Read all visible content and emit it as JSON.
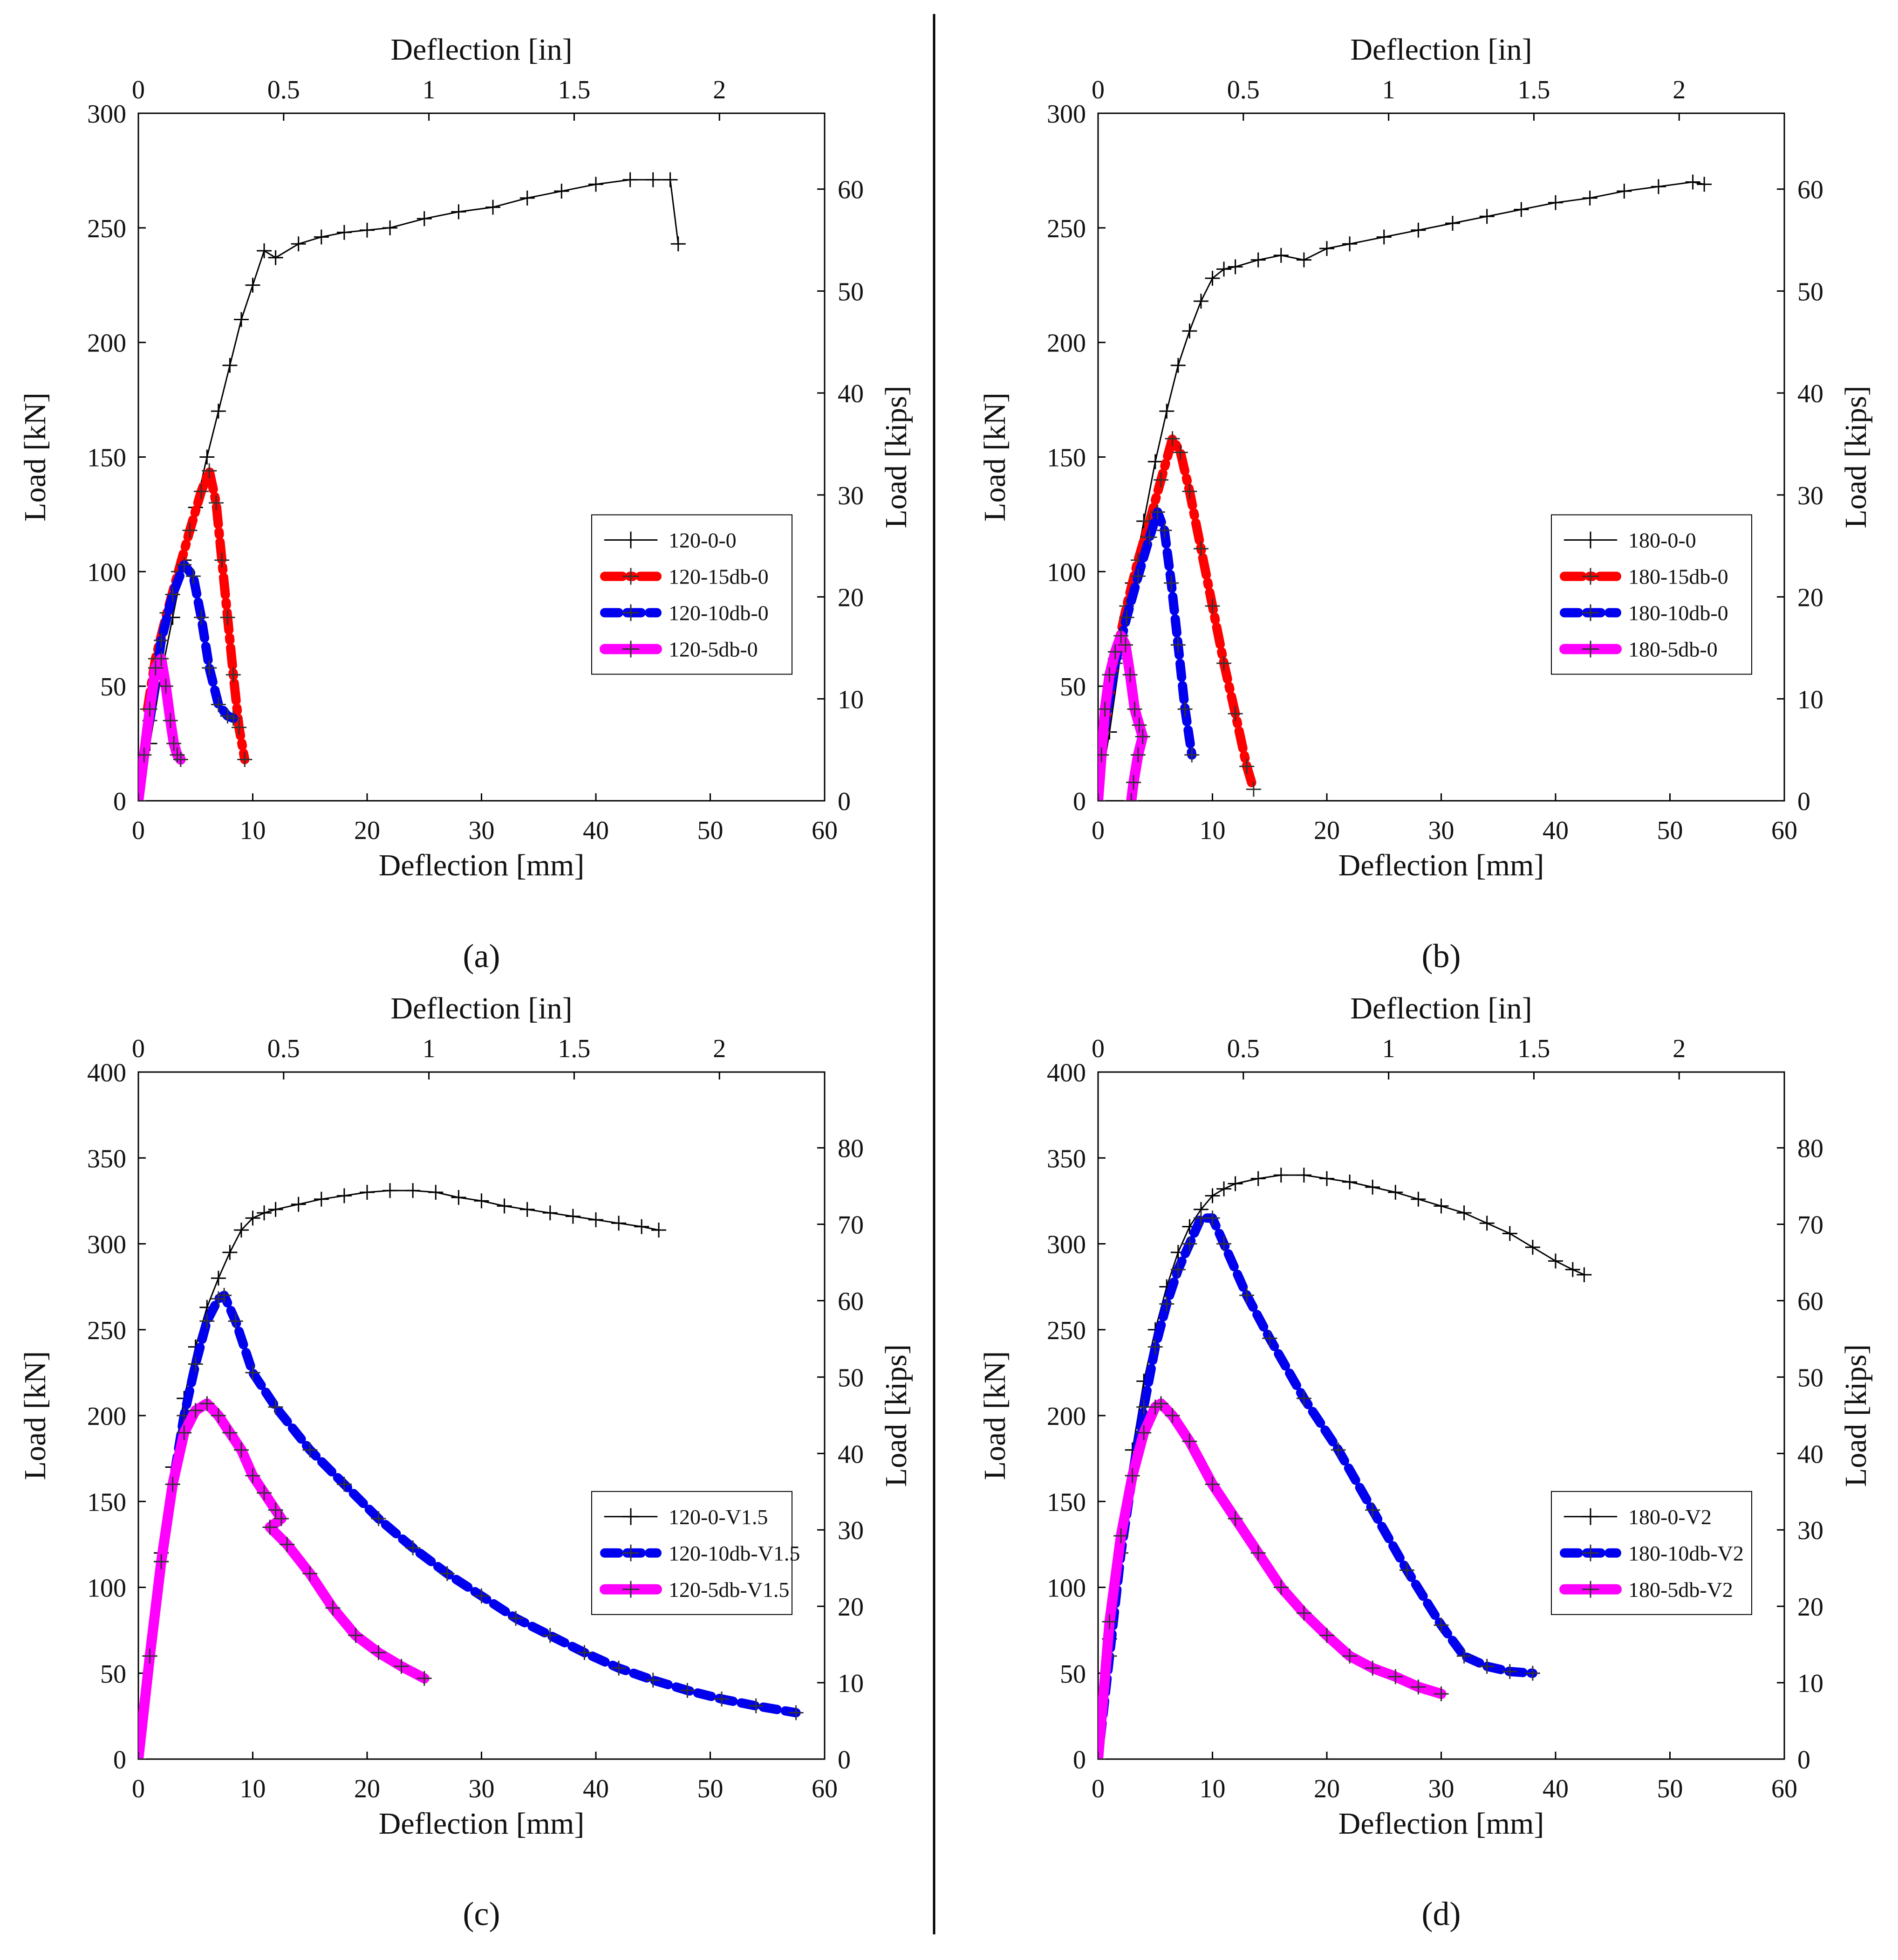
{
  "figure": {
    "panels": [
      "(a)",
      "(b)",
      "(c)",
      "(d)"
    ]
  },
  "chart_data": [
    {
      "type": "line",
      "panel_label": "a",
      "xlabel": "Deflection [mm]",
      "ylabel": "Load [kN]",
      "x2label": "Deflection [in]",
      "y2label": "Load [kips]",
      "xlim": [
        0,
        60
      ],
      "ylim": [
        0,
        300
      ],
      "x2lim": [
        0,
        2.362
      ],
      "y2lim": [
        0,
        67.44
      ],
      "xticks": [
        0,
        10,
        20,
        30,
        40,
        50,
        60
      ],
      "yticks": [
        0,
        50,
        100,
        150,
        200,
        250,
        300
      ],
      "x2ticks": [
        0,
        0.5,
        1,
        1.5,
        2
      ],
      "x2tick_labels": [
        "0",
        "0.5",
        "1",
        "1.5",
        "2"
      ],
      "y2ticks": [
        0,
        10,
        20,
        30,
        40,
        50,
        60
      ],
      "legend_position": "center-right",
      "series": [
        {
          "name": "120-0-0",
          "color": "#000000",
          "style": "thin-plus",
          "x": [
            0,
            1,
            2,
            3,
            4,
            5,
            6,
            7,
            8,
            9,
            10,
            11,
            12,
            14,
            16,
            18,
            20,
            22,
            25,
            28,
            31,
            34,
            37,
            40,
            43,
            45,
            46.5,
            47.2
          ],
          "y": [
            0,
            25,
            55,
            80,
            105,
            128,
            150,
            170,
            190,
            210,
            225,
            240,
            237,
            243,
            246,
            248,
            249,
            250,
            254,
            257,
            259,
            263,
            266,
            269,
            271,
            271,
            271,
            243
          ]
        },
        {
          "name": "120-15db-0",
          "color": "#ff0000",
          "style": "thick-dashdot",
          "x": [
            0.8,
            1.5,
            2.5,
            3.5,
            4.5,
            5.5,
            6.2,
            6.8,
            7.3,
            7.8,
            8.3,
            8.8,
            9.3
          ],
          "y": [
            40,
            62,
            82,
            100,
            118,
            135,
            144,
            130,
            105,
            80,
            55,
            32,
            18
          ]
        },
        {
          "name": "120-10db-0",
          "color": "#0000ee",
          "style": "thick-dash",
          "x": [
            1,
            2,
            3,
            4,
            4.8,
            5.5,
            6.2,
            7,
            7.8,
            8.3
          ],
          "y": [
            35,
            70,
            90,
            103,
            98,
            80,
            58,
            42,
            37,
            36
          ]
        },
        {
          "name": "120-5db-0",
          "color": "#ff00ff",
          "style": "thick-solid",
          "x": [
            0,
            0.5,
            1,
            1.5,
            2,
            2.4,
            2.8,
            3.1,
            3.4,
            3.7
          ],
          "y": [
            0,
            20,
            40,
            58,
            62,
            50,
            35,
            25,
            20,
            18
          ]
        }
      ]
    },
    {
      "type": "line",
      "panel_label": "b",
      "xlabel": "Deflection [mm]",
      "ylabel": "Load [kN]",
      "x2label": "Deflection [in]",
      "y2label": "Load [kips]",
      "xlim": [
        0,
        60
      ],
      "ylim": [
        0,
        300
      ],
      "x2lim": [
        0,
        2.362
      ],
      "y2lim": [
        0,
        67.44
      ],
      "xticks": [
        0,
        10,
        20,
        30,
        40,
        50,
        60
      ],
      "yticks": [
        0,
        50,
        100,
        150,
        200,
        250,
        300
      ],
      "x2ticks": [
        0,
        0.5,
        1,
        1.5,
        2
      ],
      "x2tick_labels": [
        "0",
        "0.5",
        "1",
        "1.5",
        "2"
      ],
      "y2ticks": [
        0,
        10,
        20,
        30,
        40,
        50,
        60
      ],
      "legend_position": "center-right",
      "series": [
        {
          "name": "180-0-0",
          "color": "#000000",
          "style": "thin-plus",
          "x": [
            0,
            1,
            2,
            3,
            4,
            5,
            6,
            7,
            8,
            9,
            10,
            11,
            12,
            14,
            16,
            18,
            20,
            22,
            25,
            28,
            31,
            34,
            37,
            40,
            43,
            46,
            49,
            52,
            53
          ],
          "y": [
            0,
            30,
            65,
            95,
            122,
            148,
            170,
            190,
            205,
            218,
            228,
            232,
            233,
            236,
            238,
            236,
            241,
            243,
            246,
            249,
            252,
            255,
            258,
            261,
            263,
            266,
            268,
            270,
            269
          ]
        },
        {
          "name": "180-15db-0",
          "color": "#ff0000",
          "style": "thick-dashdot",
          "x": [
            0.5,
            1.5,
            2.5,
            3.5,
            4.5,
            5.5,
            6.5,
            7.2,
            8,
            9,
            10,
            11,
            12,
            13,
            13.6
          ],
          "y": [
            30,
            62,
            85,
            105,
            122,
            140,
            158,
            152,
            135,
            110,
            85,
            60,
            38,
            15,
            5
          ]
        },
        {
          "name": "180-10db-0",
          "color": "#0000ee",
          "style": "thick-dash",
          "x": [
            0.5,
            1.5,
            2.5,
            3.5,
            4.5,
            5.2,
            5.8,
            6.4,
            7,
            7.6,
            8.2
          ],
          "y": [
            30,
            60,
            80,
            98,
            115,
            126,
            118,
            95,
            68,
            40,
            20
          ]
        },
        {
          "name": "180-5db-0",
          "color": "#ff00ff",
          "style": "thick-solid",
          "x": [
            0,
            0.3,
            0.6,
            1,
            1.5,
            2,
            2.4,
            2.8,
            3.2,
            3.6,
            3.9,
            3.5,
            3.1,
            2.9
          ],
          "y": [
            0,
            20,
            40,
            55,
            65,
            72,
            68,
            55,
            40,
            33,
            28,
            20,
            8,
            0
          ]
        }
      ]
    },
    {
      "type": "line",
      "panel_label": "c",
      "xlabel": "Deflection [mm]",
      "ylabel": "Load [kN]",
      "x2label": "Deflection [in]",
      "y2label": "Load [kips]",
      "xlim": [
        0,
        60
      ],
      "ylim": [
        0,
        400
      ],
      "x2lim": [
        0,
        2.362
      ],
      "y2lim": [
        0,
        89.92
      ],
      "xticks": [
        0,
        10,
        20,
        30,
        40,
        50,
        60
      ],
      "yticks": [
        0,
        50,
        100,
        150,
        200,
        250,
        300,
        350,
        400
      ],
      "x2ticks": [
        0,
        0.5,
        1,
        1.5,
        2
      ],
      "x2tick_labels": [
        "0",
        "0.5",
        "1",
        "1.5",
        "2"
      ],
      "y2ticks": [
        0,
        10,
        20,
        30,
        40,
        50,
        60,
        70,
        80
      ],
      "legend_position": "center-right",
      "series": [
        {
          "name": "120-0-V1.5",
          "color": "#000000",
          "style": "thin-plus",
          "x": [
            0,
            1,
            2,
            3,
            4,
            5,
            6,
            7,
            8,
            9,
            10,
            11,
            12,
            14,
            16,
            18,
            20,
            22,
            24,
            26,
            28,
            30,
            32,
            34,
            36,
            38,
            40,
            42,
            44,
            45.5
          ],
          "y": [
            0,
            60,
            120,
            170,
            210,
            240,
            263,
            280,
            295,
            308,
            315,
            318,
            320,
            323,
            326,
            328,
            330,
            331,
            331,
            330,
            327,
            325,
            322,
            320,
            318,
            316,
            314,
            312,
            310,
            308
          ]
        },
        {
          "name": "120-10db-V1.5",
          "color": "#0000ee",
          "style": "thick-dash",
          "x": [
            0,
            1,
            2,
            3,
            4,
            5,
            6,
            7,
            7.5,
            8.5,
            10,
            12,
            15,
            18,
            21,
            24,
            27,
            30,
            33,
            36,
            39,
            42,
            45,
            48,
            51,
            54,
            57.5
          ],
          "y": [
            0,
            60,
            115,
            160,
            200,
            230,
            255,
            268,
            270,
            255,
            225,
            205,
            180,
            160,
            140,
            123,
            108,
            95,
            82,
            72,
            62,
            53,
            46,
            40,
            35,
            31,
            27
          ]
        },
        {
          "name": "120-5db-V1.5",
          "color": "#ff00ff",
          "style": "thick-solid",
          "x": [
            0,
            1,
            2,
            3,
            4,
            5,
            6,
            7,
            8,
            9,
            10,
            11,
            12,
            12.5,
            11.5,
            13,
            15,
            17,
            19,
            21,
            23,
            25
          ],
          "y": [
            0,
            60,
            115,
            160,
            190,
            203,
            207,
            200,
            190,
            180,
            165,
            155,
            145,
            140,
            135,
            125,
            108,
            88,
            72,
            62,
            54,
            47
          ]
        }
      ]
    },
    {
      "type": "line",
      "panel_label": "d",
      "xlabel": "Deflection [mm]",
      "ylabel": "Load [kN]",
      "x2label": "Deflection [in]",
      "y2label": "Load [kips]",
      "xlim": [
        0,
        60
      ],
      "ylim": [
        0,
        400
      ],
      "x2lim": [
        0,
        2.362
      ],
      "y2lim": [
        0,
        89.92
      ],
      "xticks": [
        0,
        10,
        20,
        30,
        40,
        50,
        60
      ],
      "yticks": [
        0,
        50,
        100,
        150,
        200,
        250,
        300,
        350,
        400
      ],
      "x2ticks": [
        0,
        0.5,
        1,
        1.5,
        2
      ],
      "x2tick_labels": [
        "0",
        "0.5",
        "1",
        "1.5",
        "2"
      ],
      "y2ticks": [
        0,
        10,
        20,
        30,
        40,
        50,
        60,
        70,
        80
      ],
      "legend_position": "center-right",
      "series": [
        {
          "name": "180-0-V2",
          "color": "#000000",
          "style": "thin-plus",
          "x": [
            0,
            1,
            2,
            3,
            4,
            5,
            6,
            7,
            8,
            9,
            10,
            11,
            12,
            14,
            16,
            18,
            20,
            22,
            24,
            26,
            28,
            30,
            32,
            34,
            36,
            38,
            40,
            41.5,
            42.5
          ],
          "y": [
            0,
            70,
            130,
            180,
            220,
            250,
            275,
            295,
            310,
            320,
            328,
            332,
            335,
            338,
            340,
            340,
            338,
            336,
            333,
            330,
            326,
            322,
            318,
            312,
            306,
            298,
            290,
            285,
            282
          ]
        },
        {
          "name": "180-10db-V2",
          "color": "#0000ee",
          "style": "thick-dash",
          "x": [
            0,
            1,
            2,
            3,
            4,
            5,
            6,
            7,
            8,
            9,
            10,
            11,
            13,
            15,
            18,
            21,
            24,
            27,
            30,
            32,
            34,
            36,
            38
          ],
          "y": [
            0,
            60,
            120,
            165,
            205,
            240,
            265,
            285,
            300,
            315,
            315,
            300,
            270,
            245,
            210,
            180,
            145,
            110,
            78,
            60,
            54,
            51,
            50
          ]
        },
        {
          "name": "180-5db-V2",
          "color": "#ff00ff",
          "style": "thick-solid",
          "x": [
            0,
            1,
            2,
            3,
            4,
            5,
            5.5,
            6.5,
            8,
            10,
            12,
            14,
            16,
            18,
            20,
            22,
            24,
            26,
            28,
            30
          ],
          "y": [
            0,
            80,
            130,
            165,
            190,
            205,
            207,
            200,
            185,
            160,
            140,
            120,
            100,
            85,
            72,
            60,
            53,
            48,
            42,
            38
          ]
        }
      ]
    }
  ]
}
